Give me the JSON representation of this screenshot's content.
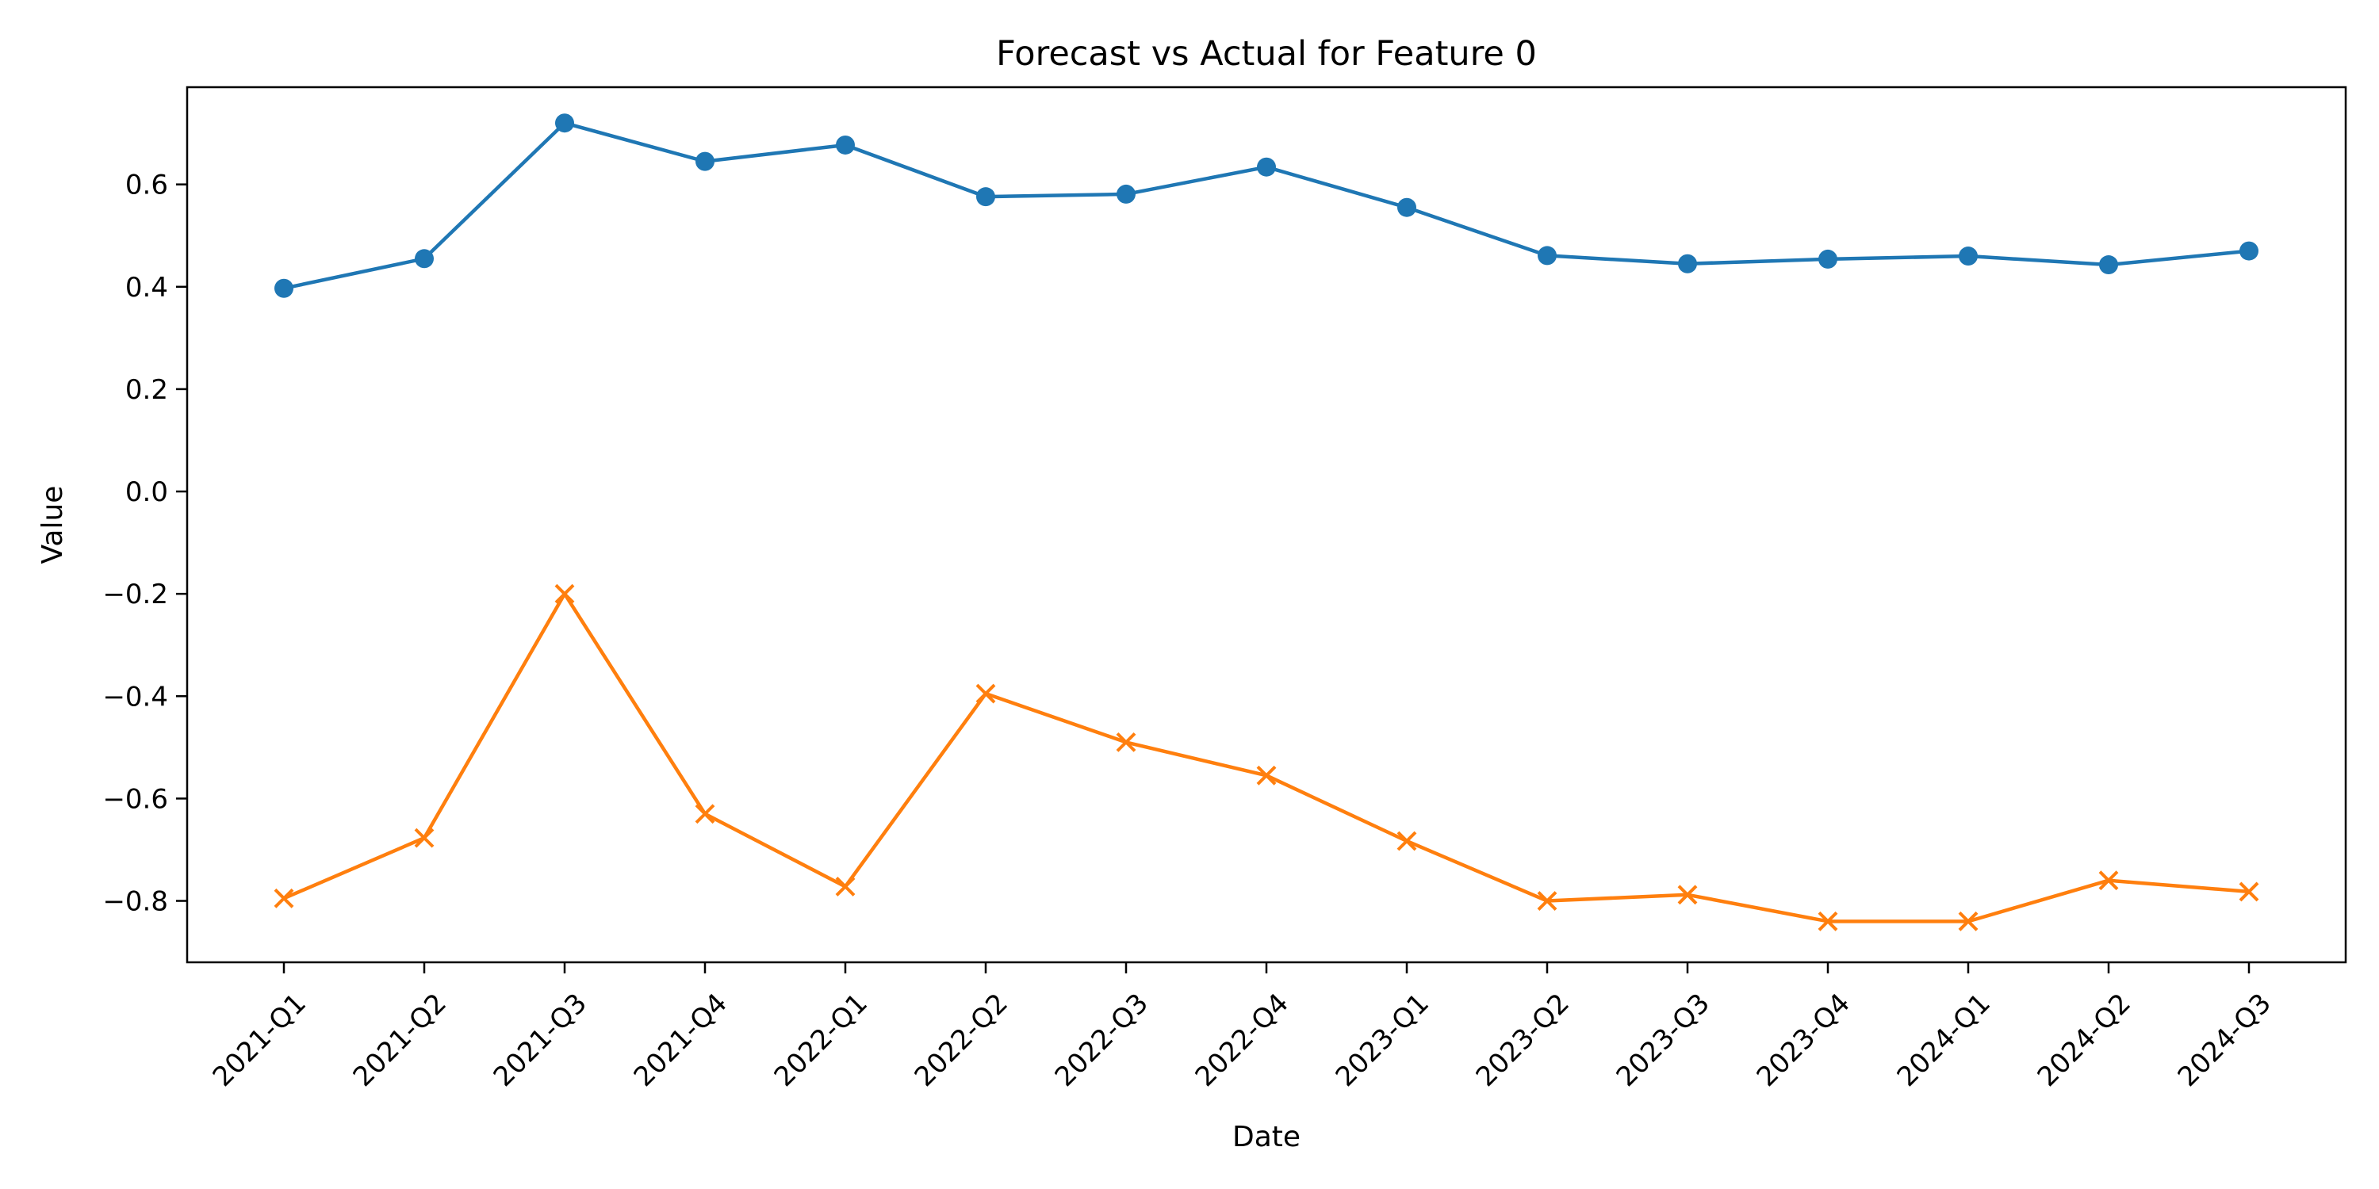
{
  "chart_data": {
    "type": "line",
    "title": "Forecast vs Actual for Feature 0",
    "xlabel": "Date",
    "ylabel": "Value",
    "categories": [
      "2021-Q1",
      "2021-Q2",
      "2021-Q3",
      "2021-Q4",
      "2022-Q1",
      "2022-Q2",
      "2022-Q3",
      "2022-Q4",
      "2023-Q1",
      "2023-Q2",
      "2023-Q3",
      "2023-Q4",
      "2024-Q1",
      "2024-Q2",
      "2024-Q3"
    ],
    "ylim": [
      -0.92,
      0.79
    ],
    "yticks": [
      -0.8,
      -0.6,
      -0.4,
      -0.2,
      0.0,
      0.2,
      0.4,
      0.6
    ],
    "ytick_labels": [
      "−0.8",
      "−0.6",
      "−0.4",
      "−0.2",
      "0.0",
      "0.2",
      "0.4",
      "0.6"
    ],
    "grid": false,
    "series": [
      {
        "color": "#1f77b4",
        "marker": "circle",
        "values": [
          0.397,
          0.455,
          0.72,
          0.645,
          0.677,
          0.576,
          0.581,
          0.634,
          0.555,
          0.461,
          0.445,
          0.454,
          0.46,
          0.443,
          0.47
        ]
      },
      {
        "color": "#ff7f0e",
        "marker": "x",
        "values": [
          -0.795,
          -0.677,
          -0.2,
          -0.63,
          -0.772,
          -0.395,
          -0.49,
          -0.555,
          -0.683,
          -0.8,
          -0.788,
          -0.84,
          -0.84,
          -0.76,
          -0.782
        ]
      }
    ]
  }
}
